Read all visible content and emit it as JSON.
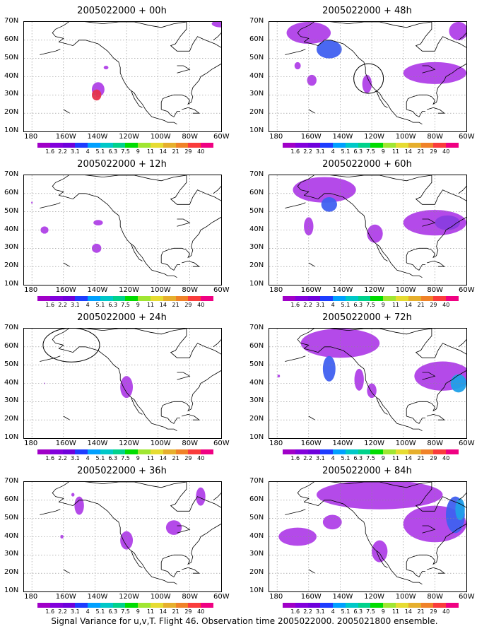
{
  "panels": [
    {
      "title": "2005022000 + 00h"
    },
    {
      "title": "2005022000 + 48h"
    },
    {
      "title": "2005022000 + 12h"
    },
    {
      "title": "2005022000 + 60h"
    },
    {
      "title": "2005022000 + 24h"
    },
    {
      "title": "2005022000 + 72h"
    },
    {
      "title": "2005022000 + 36h"
    },
    {
      "title": "2005022000 + 84h"
    }
  ],
  "axes": {
    "lat_labels": [
      "70N",
      "60N",
      "50N",
      "40N",
      "30N",
      "20N",
      "10N"
    ],
    "lon_labels": [
      "180",
      "160W",
      "140W",
      "120W",
      "100W",
      "80W",
      "60W"
    ]
  },
  "colorbar": {
    "labels": [
      "1.6",
      "2.2",
      "3.1",
      "4",
      "5.1",
      "6.3",
      "7.5",
      "9",
      "11",
      "14",
      "21",
      "29",
      "40"
    ],
    "colors": [
      "#a000c8",
      "#8200dc",
      "#6e00dc",
      "#1e3cff",
      "#00a0ff",
      "#00c8c8",
      "#00d28c",
      "#00dc00",
      "#a0e632",
      "#e6dc32",
      "#e6af2d",
      "#f08228",
      "#fa3c3c",
      "#f00082"
    ]
  },
  "footer": "Signal Variance for u,v,T. Flight 46. Observation time 2005022000. 2005021800 ensemble.",
  "colors": {
    "variance_light": "#b040e8",
    "variance_mid": "#8a3ce0",
    "variance_blue": "#4060f0",
    "variance_cyan": "#20a0e8",
    "high_red": "#e8304a",
    "coastline": "#000000",
    "grid": "#888888"
  },
  "icons": [
    "map-coastline",
    "circle-annotation"
  ]
}
